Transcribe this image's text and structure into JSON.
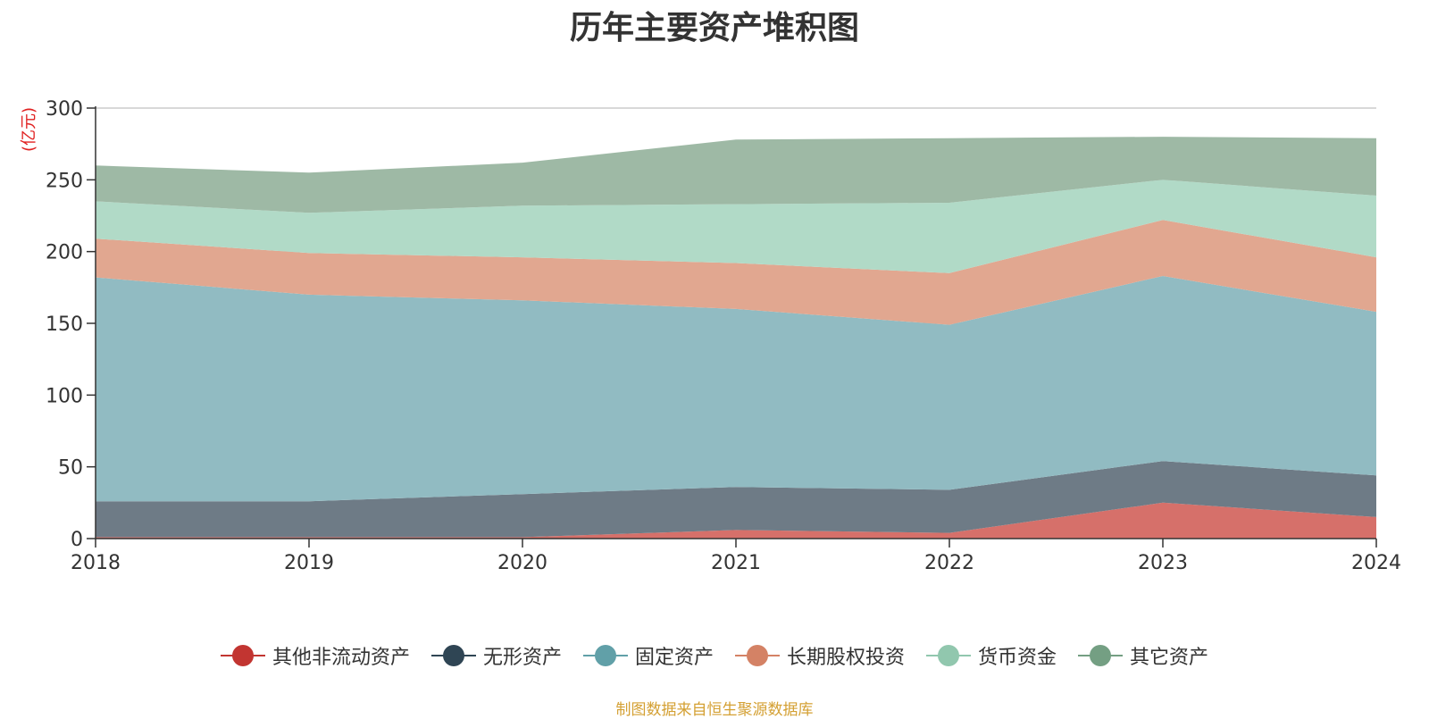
{
  "chart_data": {
    "type": "area",
    "stacked": true,
    "title": "历年主要资产堆积图",
    "unit_label": "(亿元)",
    "x": [
      "2018",
      "2019",
      "2020",
      "2021",
      "2022",
      "2023",
      "2024"
    ],
    "ylim": [
      0,
      300
    ],
    "yticks": [
      "0",
      "50",
      "100",
      "150",
      "200",
      "250",
      "300"
    ],
    "grid": true,
    "legend_position": "bottom",
    "series": [
      {
        "name": "其他非流动资产",
        "color": "#c23531",
        "fill": "#d6706a",
        "values": [
          1,
          1,
          1,
          6,
          4,
          25,
          15
        ]
      },
      {
        "name": "无形资产",
        "color": "#2f4554",
        "fill": "#6e7b86",
        "values": [
          25,
          25,
          30,
          30,
          30,
          29,
          29
        ]
      },
      {
        "name": "固定资产",
        "color": "#61a0a8",
        "fill": "#91bbc2",
        "values": [
          156,
          144,
          135,
          124,
          115,
          129,
          114
        ]
      },
      {
        "name": "长期股权投资",
        "color": "#d48265",
        "fill": "#e1a790",
        "values": [
          27,
          29,
          30,
          32,
          36,
          39,
          38
        ]
      },
      {
        "name": "货币资金",
        "color": "#91c7ae",
        "fill": "#b1dac7",
        "values": [
          26,
          28,
          36,
          41,
          49,
          28,
          43
        ]
      },
      {
        "name": "其它资产",
        "color": "#749f83",
        "fill": "#9eb9a5",
        "values": [
          25,
          28,
          30,
          45,
          45,
          30,
          40
        ]
      }
    ]
  },
  "source_text": "制图数据来自恒生聚源数据库"
}
